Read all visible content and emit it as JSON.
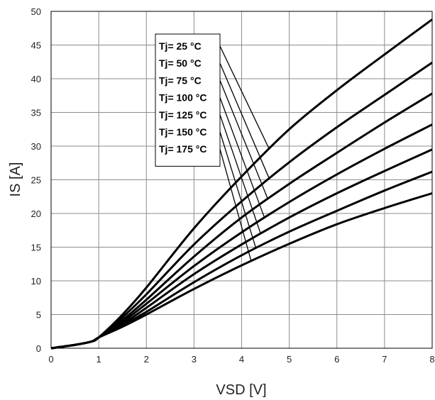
{
  "chart_data": {
    "type": "line",
    "xlabel": "VSD [V]",
    "ylabel": "IS [A]",
    "xlim": [
      0,
      8
    ],
    "ylim": [
      0,
      50
    ],
    "xticks": [
      0,
      1,
      2,
      3,
      4,
      5,
      6,
      7,
      8
    ],
    "yticks": [
      0,
      5,
      10,
      15,
      20,
      25,
      30,
      35,
      40,
      45,
      50
    ],
    "grid": true,
    "legend_position": "top-left inside plot",
    "line_color": "#000000",
    "series": [
      {
        "name": "Tj= 25 °C",
        "x": [
          0,
          0.5,
          0.85,
          1.0,
          1.5,
          2,
          3,
          4,
          5,
          6,
          7,
          8
        ],
        "y": [
          0,
          0.5,
          1.0,
          1.6,
          5.0,
          9.0,
          17.8,
          25.5,
          32.5,
          38.3,
          43.6,
          48.8
        ]
      },
      {
        "name": "Tj= 50 °C",
        "x": [
          0,
          0.5,
          0.85,
          1.0,
          1.5,
          2,
          3,
          4,
          5,
          6,
          7,
          8
        ],
        "y": [
          0,
          0.5,
          1.0,
          1.6,
          4.6,
          8.0,
          15.4,
          21.8,
          27.6,
          32.8,
          37.6,
          42.4
        ]
      },
      {
        "name": "Tj= 75 °C",
        "x": [
          0,
          0.5,
          0.85,
          1.0,
          1.5,
          2,
          3,
          4,
          5,
          6,
          7,
          8
        ],
        "y": [
          0,
          0.5,
          1.0,
          1.6,
          4.2,
          7.2,
          13.6,
          19.4,
          24.4,
          29.0,
          33.5,
          37.8
        ]
      },
      {
        "name": "Tj= 100 °C",
        "x": [
          0,
          0.5,
          0.85,
          1.0,
          1.5,
          2,
          3,
          4,
          5,
          6,
          7,
          8
        ],
        "y": [
          0,
          0.5,
          1.0,
          1.6,
          3.9,
          6.6,
          12.2,
          17.2,
          21.7,
          25.8,
          29.6,
          33.2
        ]
      },
      {
        "name": "Tj= 125 °C",
        "x": [
          0,
          0.5,
          0.85,
          1.0,
          1.5,
          2,
          3,
          4,
          5,
          6,
          7,
          8
        ],
        "y": [
          0,
          0.5,
          1.0,
          1.6,
          3.6,
          6.0,
          11.0,
          15.4,
          19.4,
          23.0,
          26.3,
          29.5
        ]
      },
      {
        "name": "Tj= 150 °C",
        "x": [
          0,
          0.5,
          0.85,
          1.0,
          1.5,
          2,
          3,
          4,
          5,
          6,
          7,
          8
        ],
        "y": [
          0,
          0.5,
          1.0,
          1.6,
          3.4,
          5.4,
          9.8,
          13.8,
          17.3,
          20.4,
          23.4,
          26.2
        ]
      },
      {
        "name": "Tj= 175 °C",
        "x": [
          0,
          0.5,
          0.85,
          1.0,
          1.5,
          2,
          3,
          4,
          5,
          6,
          7,
          8
        ],
        "y": [
          0,
          0.5,
          1.0,
          1.6,
          3.2,
          5.0,
          8.8,
          12.3,
          15.5,
          18.4,
          20.8,
          23.0
        ]
      }
    ]
  }
}
